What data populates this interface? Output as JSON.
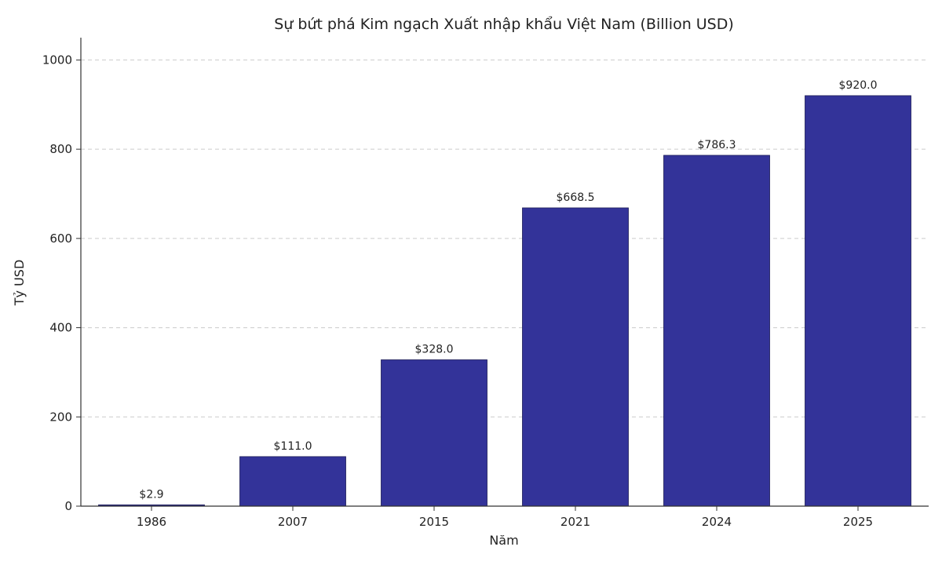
{
  "chart_data": {
    "type": "bar",
    "title": "Sự bứt phá Kim ngạch Xuất nhập khẩu Việt Nam (Billion USD)",
    "xlabel": "Năm",
    "ylabel": "Tỷ USD",
    "categories": [
      "1986",
      "2007",
      "2015",
      "2021",
      "2024",
      "2025"
    ],
    "values": [
      2.9,
      111.0,
      328.0,
      668.5,
      786.3,
      920.0
    ],
    "data_labels": [
      "$2.9",
      "$111.0",
      "$328.0",
      "$668.5",
      "$786.3",
      "$920.0"
    ],
    "ylim": [
      0,
      1050
    ],
    "yticks": [
      0,
      200,
      400,
      600,
      800,
      1000
    ],
    "ytick_labels": [
      "0",
      "200",
      "400",
      "600",
      "800",
      "1000"
    ],
    "grid": "horizontal dashed",
    "bar_color": "#333399",
    "grid_color": "#cccccc"
  }
}
